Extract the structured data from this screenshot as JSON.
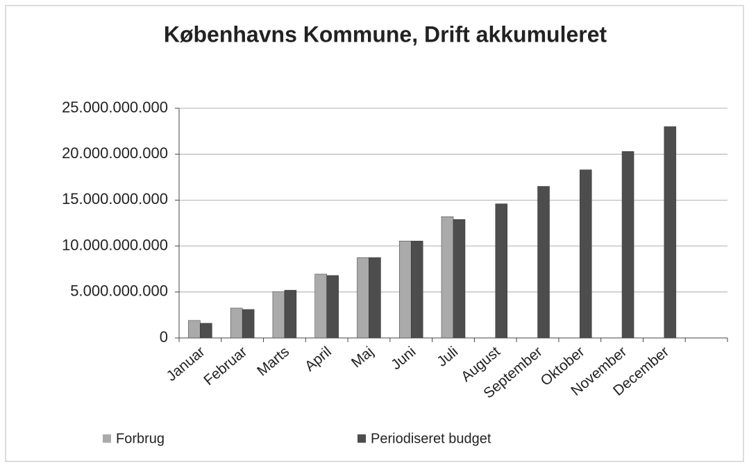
{
  "chart_data": {
    "type": "bar",
    "title": "Københavns Kommune, Drift akkumuleret",
    "categories": [
      "Januar",
      "Februar",
      "Marts",
      "April",
      "Maj",
      "Juni",
      "Juli",
      "August",
      "September",
      "Oktober",
      "November",
      "December",
      null
    ],
    "series": [
      {
        "name": "Forbrug",
        "color": "#aaaaaa",
        "values": [
          1900000000,
          3250000000,
          5050000000,
          6950000000,
          8750000000,
          10550000000,
          13200000000,
          null,
          null,
          null,
          null,
          null,
          null
        ]
      },
      {
        "name": "Periodiseret budget",
        "color": "#4d4d4d",
        "values": [
          1600000000,
          3100000000,
          5200000000,
          6800000000,
          8750000000,
          10550000000,
          12900000000,
          14600000000,
          16500000000,
          18300000000,
          20300000000,
          23000000000,
          null
        ]
      }
    ],
    "ylim": [
      0,
      25000000000
    ],
    "yticks": [
      0,
      {
        "value": 5000000000,
        "label": "5.000.000.000"
      },
      {
        "value": 10000000000,
        "label": "10.000.000.000"
      },
      {
        "value": 15000000000,
        "label": "15.000.000.000"
      },
      {
        "value": 20000000000,
        "label": "20.000.000.000"
      },
      {
        "value": 25000000000,
        "label": "25.000.000.000"
      }
    ],
    "grid": true,
    "legend": "bottom"
  }
}
